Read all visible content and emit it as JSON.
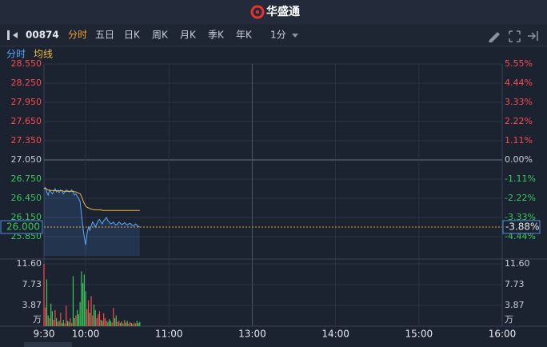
{
  "header": {
    "title": "华盛通"
  },
  "toolbar": {
    "code": "00874",
    "tabs": [
      "分时",
      "五日",
      "日K",
      "周K",
      "月K",
      "季K",
      "年K"
    ],
    "active_tab": 0,
    "interval": "1分"
  },
  "chart_data": {
    "type": "line",
    "x": [
      0,
      1,
      2,
      3,
      4,
      5,
      6,
      7,
      8,
      9,
      10,
      11,
      12,
      13,
      14,
      15,
      16,
      17,
      18,
      19,
      20,
      21,
      22,
      23,
      24,
      25,
      26,
      27,
      28,
      29,
      30,
      31,
      32,
      33,
      34,
      35,
      36,
      37,
      38,
      39,
      40,
      41,
      42,
      43,
      44,
      45,
      46,
      47,
      48,
      49,
      50,
      51,
      52,
      53,
      54,
      55,
      56,
      57,
      58,
      59,
      60,
      61,
      62,
      63,
      64,
      65,
      66,
      67,
      68,
      69
    ],
    "xlim": [
      0,
      330
    ],
    "xticks": [
      {
        "value": 0,
        "label": "9:30"
      },
      {
        "value": 30,
        "label": "10:00"
      },
      {
        "value": 90,
        "label": "11:00"
      },
      {
        "value": 150,
        "label": "13:00"
      },
      {
        "value": 210,
        "label": "14:00"
      },
      {
        "value": 270,
        "label": "15:00"
      },
      {
        "value": 330,
        "label": "16:00"
      }
    ],
    "ylim": [
      25.55,
      28.55
    ],
    "yticks": [
      {
        "value": 28.55,
        "label": "28.550"
      },
      {
        "value": 28.25,
        "label": "28.250"
      },
      {
        "value": 27.95,
        "label": "27.950"
      },
      {
        "value": 27.65,
        "label": "27.650"
      },
      {
        "value": 27.35,
        "label": "27.350"
      },
      {
        "value": 27.05,
        "label": "27.050"
      },
      {
        "value": 26.75,
        "label": "26.750"
      },
      {
        "value": 26.45,
        "label": "26.450"
      },
      {
        "value": 26.15,
        "label": "26.150"
      },
      {
        "value": 25.85,
        "label": "25.850"
      }
    ],
    "y2lim": [
      -5.55,
      5.55
    ],
    "y2ticks": [
      {
        "value": 5.55,
        "label": "5.55%"
      },
      {
        "value": 4.44,
        "label": "4.44%"
      },
      {
        "value": 3.33,
        "label": "3.33%"
      },
      {
        "value": 2.22,
        "label": "2.22%"
      },
      {
        "value": 1.11,
        "label": "1.11%"
      },
      {
        "value": 0,
        "label": "0.00%"
      },
      {
        "value": -1.11,
        "label": "-1.11%"
      },
      {
        "value": -2.22,
        "label": "-2.22%"
      },
      {
        "value": -3.33,
        "label": "-3.33%"
      },
      {
        "value": -4.44,
        "label": "-4.44%"
      }
    ],
    "grid": true,
    "prev_close": 27.05,
    "up_color": "#ff4a4a",
    "down_color": "#3cc85a",
    "last_price": {
      "value": 26.0,
      "label": "26.000"
    },
    "last_change": {
      "value": -3.88,
      "label": "-3.88%"
    },
    "series": [
      {
        "name": "分时",
        "color": "#5aa9ff",
        "values": [
          26.6,
          26.62,
          26.55,
          26.5,
          26.58,
          26.55,
          26.52,
          26.56,
          26.6,
          26.55,
          26.57,
          26.54,
          26.58,
          26.56,
          26.52,
          26.55,
          26.58,
          26.57,
          26.55,
          26.56,
          26.58,
          26.54,
          26.5,
          26.52,
          26.48,
          26.45,
          26.4,
          26.2,
          26.0,
          25.85,
          25.72,
          25.9,
          26.0,
          25.95,
          26.02,
          26.08,
          26.05,
          26.0,
          26.05,
          26.1,
          26.12,
          26.08,
          26.05,
          26.1,
          26.12,
          26.15,
          26.1,
          26.08,
          26.05,
          26.06,
          26.08,
          26.05,
          26.03,
          26.05,
          26.08,
          26.06,
          26.04,
          26.05,
          26.07,
          26.05,
          26.03,
          26.05,
          26.06,
          26.04,
          26.02,
          26.03,
          26.05,
          26.03,
          26.01,
          26.0
        ]
      },
      {
        "name": "均线",
        "color": "#f0b840",
        "values": [
          26.6,
          26.61,
          26.59,
          26.58,
          26.58,
          26.57,
          26.57,
          26.57,
          26.57,
          26.57,
          26.57,
          26.57,
          26.57,
          26.57,
          26.56,
          26.56,
          26.56,
          26.56,
          26.56,
          26.56,
          26.56,
          26.56,
          26.55,
          26.55,
          26.54,
          26.53,
          26.52,
          26.48,
          26.42,
          26.37,
          26.33,
          26.31,
          26.3,
          26.29,
          26.28,
          26.28,
          26.27,
          26.27,
          26.27,
          26.27,
          26.27,
          26.27,
          26.26,
          26.26,
          26.26,
          26.26,
          26.26,
          26.26,
          26.26,
          26.26,
          26.26,
          26.26,
          26.26,
          26.26,
          26.26,
          26.26,
          26.26,
          26.26,
          26.26,
          26.26,
          26.26,
          26.26,
          26.26,
          26.26,
          26.26,
          26.26,
          26.26,
          26.26,
          26.26,
          26.26
        ]
      }
    ],
    "volume": {
      "unit": "万",
      "ylim": [
        0,
        11.6
      ],
      "yticks": [
        {
          "value": 11.6,
          "label": "11.60"
        },
        7.73,
        3.87
      ],
      "values": [
        11.6,
        3.5,
        8.7,
        2.0,
        1.5,
        4.2,
        2.8,
        1.2,
        3.0,
        1.5,
        0.8,
        1.0,
        2.5,
        0.6,
        1.2,
        0.5,
        3.8,
        1.0,
        0.8,
        1.5,
        0.6,
        9.3,
        1.5,
        2.0,
        3.0,
        2.2,
        4.5,
        10.2,
        8.0,
        9.6,
        6.5,
        3.2,
        4.8,
        2.5,
        5.6,
        2.0,
        4.0,
        3.0,
        1.5,
        2.2,
        2.8,
        1.2,
        1.0,
        2.4,
        1.5,
        1.0,
        0.8,
        1.3,
        1.0,
        0.7,
        3.4,
        1.5,
        2.0,
        0.8,
        1.0,
        0.6,
        0.9,
        0.5,
        1.2,
        0.7,
        1.0,
        0.5,
        0.8,
        0.6,
        0.4,
        0.7,
        0.5,
        1.0,
        0.6,
        0.8
      ]
    }
  }
}
